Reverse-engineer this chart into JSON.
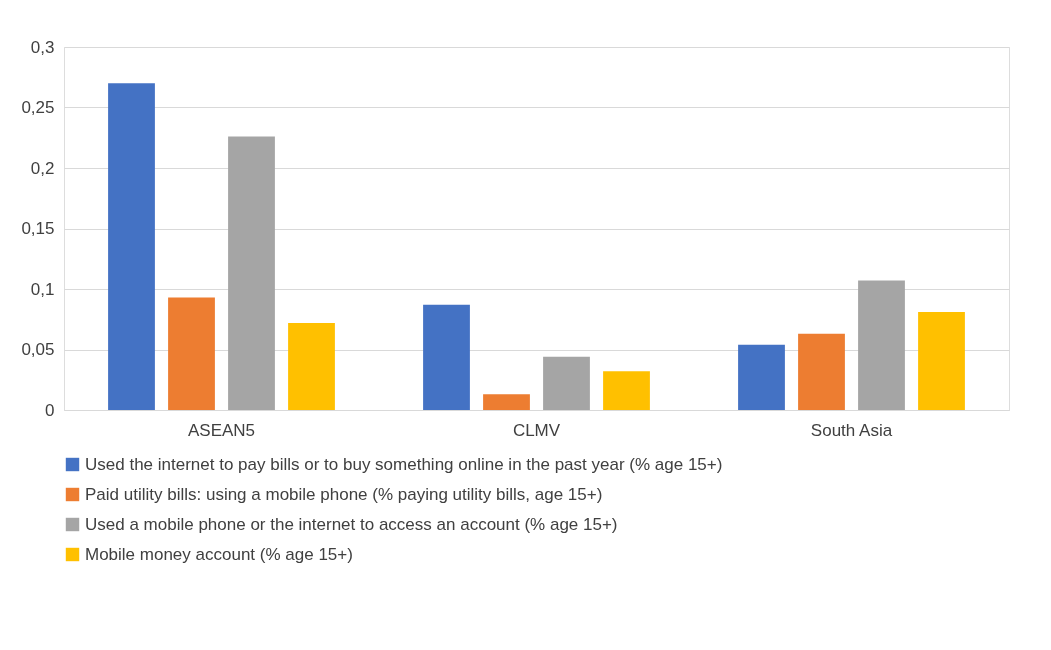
{
  "chart_data": {
    "type": "bar",
    "categories": [
      "ASEAN5",
      "CLMV",
      "South Asia"
    ],
    "series": [
      {
        "name": "Used the internet to pay bills or to buy something online in the past year (% age 15+)",
        "color": "#4472c4",
        "values": [
          0.27,
          0.087,
          0.054
        ]
      },
      {
        "name": "Paid utility bills: using a mobile phone (% paying utility bills, age 15+)",
        "color": "#ed7d31",
        "values": [
          0.093,
          0.013,
          0.063
        ]
      },
      {
        "name": "Used a mobile phone or the internet to access an account (% age 15+)",
        "color": "#a5a5a5",
        "values": [
          0.226,
          0.044,
          0.107
        ]
      },
      {
        "name": "Mobile money account (% age 15+)",
        "color": "#ffc000",
        "values": [
          0.072,
          0.032,
          0.081
        ]
      }
    ],
    "ylim": [
      0,
      0.3
    ],
    "yticks": [
      {
        "value": 0,
        "label": "0"
      },
      {
        "value": 0.05,
        "label": "0,05"
      },
      {
        "value": 0.1,
        "label": "0,1"
      },
      {
        "value": 0.15,
        "label": "0,15"
      },
      {
        "value": 0.2,
        "label": "0,2"
      },
      {
        "value": 0.25,
        "label": "0,25"
      },
      {
        "value": 0.3,
        "label": "0,3"
      }
    ],
    "grid": "y",
    "legend": "bottom"
  }
}
